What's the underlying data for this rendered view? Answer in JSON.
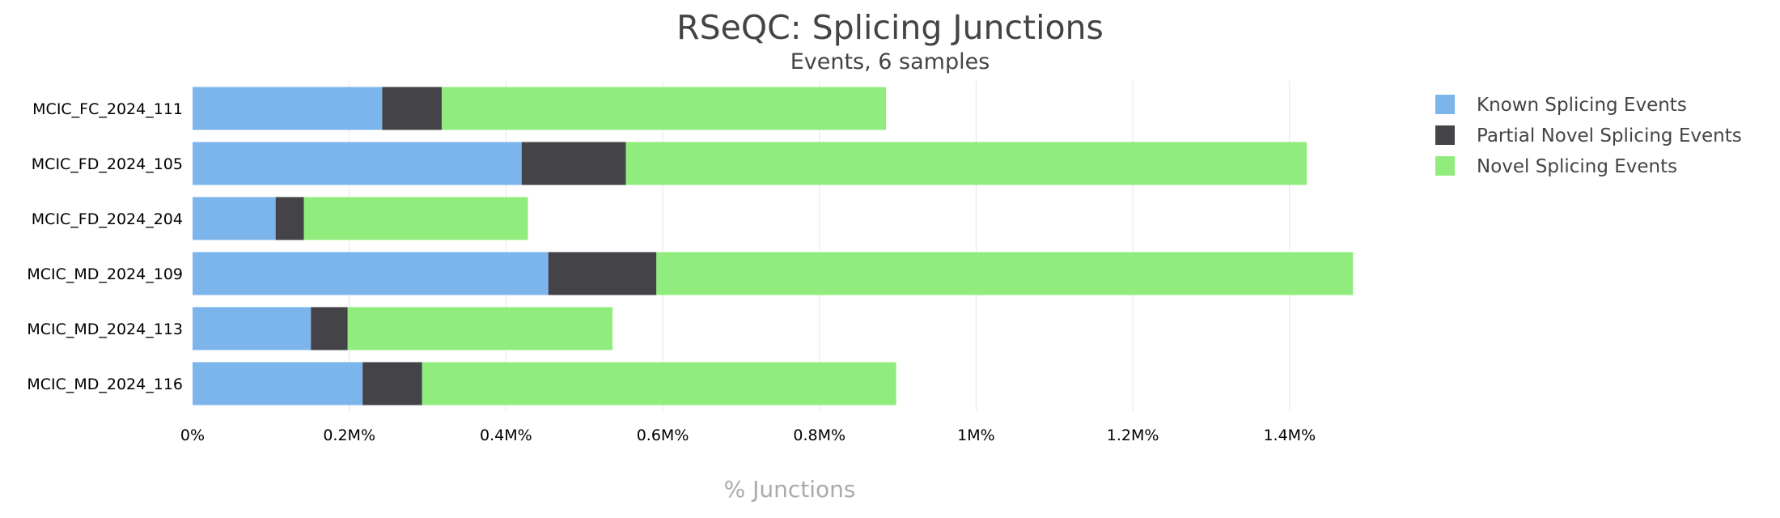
{
  "chart_data": {
    "type": "bar",
    "orientation": "horizontal",
    "stacked": true,
    "title": "RSeQC: Splicing Junctions",
    "subtitle": "Events, 6 samples",
    "xlabel": "% Junctions",
    "ylabel": "",
    "xlim": [
      0,
      1520000
    ],
    "xticks": [
      0,
      200000,
      400000,
      600000,
      800000,
      1000000,
      1200000,
      1400000
    ],
    "xtick_labels": [
      "0%",
      "0.2M%",
      "0.4M%",
      "0.6M%",
      "0.8M%",
      "1M%",
      "1.2M%",
      "1.4M%"
    ],
    "grid": "vertical",
    "legend_position": "top-right",
    "categories": [
      "MCIC_FC_2024_111",
      "MCIC_FD_2024_105",
      "MCIC_FD_2024_204",
      "MCIC_MD_2024_109",
      "MCIC_MD_2024_113",
      "MCIC_MD_2024_116"
    ],
    "series": [
      {
        "name": "Known Splicing Events",
        "color": "#7cb5ec",
        "values": [
          242000,
          420000,
          106000,
          454000,
          151000,
          217000
        ]
      },
      {
        "name": "Partial Novel Splicing Events",
        "color": "#434348",
        "values": [
          76000,
          133000,
          36000,
          138000,
          47000,
          76000
        ]
      },
      {
        "name": "Novel Splicing Events",
        "color": "#90ed7d",
        "values": [
          567000,
          869000,
          286000,
          889000,
          338000,
          605000
        ]
      }
    ]
  }
}
